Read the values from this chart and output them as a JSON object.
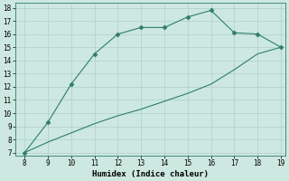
{
  "xlabel": "Humidex (Indice chaleur)",
  "x_upper": [
    8,
    9,
    10,
    11,
    12,
    13,
    14,
    15,
    16,
    17,
    18,
    19
  ],
  "y_upper": [
    7.0,
    9.3,
    12.2,
    14.5,
    16.0,
    16.5,
    16.5,
    17.3,
    17.8,
    16.1,
    16.0,
    15.0
  ],
  "x_lower": [
    8,
    9,
    10,
    11,
    12,
    13,
    14,
    15,
    16,
    17,
    18,
    19
  ],
  "y_lower": [
    7.0,
    7.8,
    8.5,
    9.2,
    9.8,
    10.3,
    10.9,
    11.5,
    12.2,
    13.3,
    14.5,
    15.0
  ],
  "line_color": "#2d7d6e",
  "bg_color": "#cde8e0",
  "grid_color": "#b0cfc8",
  "ylim_min": 7,
  "ylim_max": 18,
  "xlim_min": 8,
  "xlim_max": 19,
  "yticks": [
    7,
    8,
    9,
    10,
    11,
    12,
    13,
    14,
    15,
    16,
    17,
    18
  ],
  "xticks": [
    8,
    9,
    10,
    11,
    12,
    13,
    14,
    15,
    16,
    17,
    18,
    19
  ],
  "tick_fontsize": 5.5,
  "xlabel_fontsize": 6.5,
  "marker_size": 2.5,
  "linewidth": 0.8
}
